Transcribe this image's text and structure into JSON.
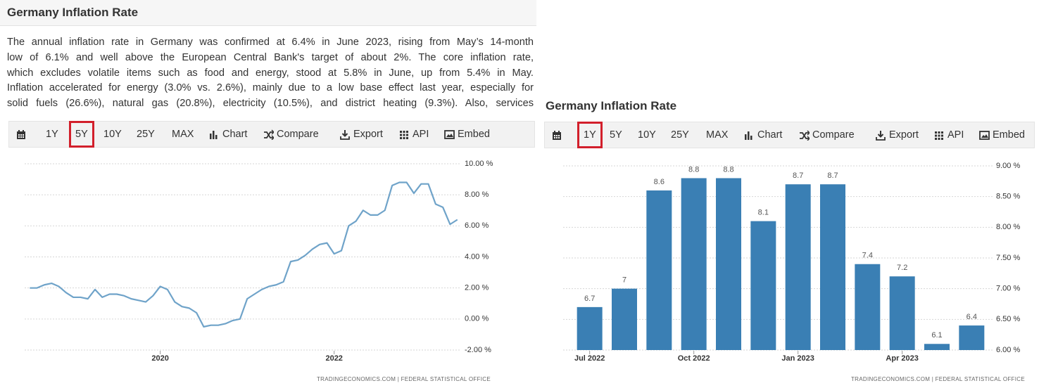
{
  "panels": [
    {
      "title": "Germany Inflation Rate",
      "paragraph": [
        "The annual inflation rate in Germany was confirmed at 6.4% in June 2023, rising from May’s 14-month",
        "low of 6.1% and well above the European Central Bank's target of about 2%. The core inflation rate,",
        "which excludes volatile items such as food and energy, stood at 5.8% in June, up from 5.4% in May.",
        "Inflation accelerated for energy (3.0% vs. 2.6%), mainly due to a low base effect last year, especially for",
        "solid fuels (26.6%), natural gas (20.8%), electricity (10.5%), and district heating (9.3%). Also, services"
      ],
      "toolbar": [
        "1Y",
        "5Y",
        "10Y",
        "25Y",
        "MAX",
        "Chart",
        "Compare",
        "Export",
        "API",
        "Embed"
      ],
      "selected": 1,
      "source": "TRADINGECONOMICS.COM | FEDERAL STATISTICAL OFFICE"
    },
    {
      "title": "Germany Inflation Rate",
      "toolbar": [
        "1Y",
        "5Y",
        "10Y",
        "25Y",
        "MAX",
        "Chart",
        "Compare",
        "Export",
        "API",
        "Embed"
      ],
      "selected": 0,
      "source": "TRADINGECONOMICS.COM | FEDERAL STATISTICAL OFFICE"
    }
  ],
  "chart_data": [
    {
      "type": "line",
      "color": "#6fa3c9",
      "x": [
        2018.5,
        2018.583,
        2018.667,
        2018.75,
        2018.833,
        2018.917,
        2019,
        2019.083,
        2019.167,
        2019.25,
        2019.333,
        2019.417,
        2019.5,
        2019.583,
        2019.667,
        2019.75,
        2019.833,
        2019.917,
        2020,
        2020.083,
        2020.167,
        2020.25,
        2020.333,
        2020.417,
        2020.5,
        2020.583,
        2020.667,
        2020.75,
        2020.833,
        2020.917,
        2021,
        2021.083,
        2021.167,
        2021.25,
        2021.333,
        2021.417,
        2021.5,
        2021.583,
        2021.667,
        2021.75,
        2021.833,
        2021.917,
        2022,
        2022.083,
        2022.167,
        2022.25,
        2022.333,
        2022.417,
        2022.5,
        2022.583,
        2022.667,
        2022.75,
        2022.833,
        2022.917,
        2023,
        2023.083,
        2023.167,
        2023.25,
        2023.333,
        2023.417
      ],
      "values": [
        2.0,
        2.0,
        2.2,
        2.3,
        2.1,
        1.7,
        1.4,
        1.4,
        1.3,
        1.9,
        1.4,
        1.6,
        1.6,
        1.5,
        1.3,
        1.2,
        1.1,
        1.5,
        2.1,
        1.9,
        1.1,
        0.8,
        0.7,
        0.4,
        -0.5,
        -0.4,
        -0.4,
        -0.3,
        -0.1,
        0.0,
        1.3,
        1.6,
        1.9,
        2.1,
        2.2,
        2.4,
        3.7,
        3.8,
        4.1,
        4.5,
        4.8,
        4.9,
        4.2,
        4.4,
        6.0,
        6.3,
        7.0,
        6.7,
        6.7,
        7.0,
        8.6,
        8.8,
        8.8,
        8.1,
        8.7,
        8.7,
        7.4,
        7.2,
        6.1,
        6.4
      ],
      "xlim": [
        2018.4,
        2023.5
      ],
      "xticks": [
        2020,
        2022
      ],
      "ylim": [
        -2,
        10
      ],
      "yticks": [
        {
          "value": -2,
          "label": "-2.00 %"
        },
        {
          "value": 0,
          "label": "0.00 %"
        },
        {
          "value": 2,
          "label": "2.00 %"
        },
        {
          "value": 4,
          "label": "4.00 %"
        },
        {
          "value": 6,
          "label": "6.00 %"
        },
        {
          "value": 8,
          "label": "8.00 %"
        },
        {
          "value": 10,
          "label": "10.00 %"
        }
      ],
      "grid": true
    },
    {
      "type": "bar",
      "color": "#3a7fb4",
      "categories": [
        "Jul 2022",
        null,
        null,
        "Oct 2022",
        null,
        null,
        "Jan 2023",
        null,
        null,
        "Apr 2023",
        null,
        null
      ],
      "values": [
        6.7,
        7,
        8.6,
        8.8,
        8.8,
        8.1,
        8.7,
        8.7,
        7.4,
        7.2,
        6.1,
        6.4
      ],
      "ylim": [
        6,
        9
      ],
      "yticks": [
        {
          "value": 6,
          "label": "6.00 %"
        },
        {
          "value": 6.5,
          "label": "6.50 %"
        },
        {
          "value": 7,
          "label": "7.00 %"
        },
        {
          "value": 7.5,
          "label": "7.50 %"
        },
        {
          "value": 8,
          "label": "8.00 %"
        },
        {
          "value": 8.5,
          "label": "8.50 %"
        },
        {
          "value": 9,
          "label": "9.00 %"
        }
      ],
      "grid": true
    }
  ]
}
